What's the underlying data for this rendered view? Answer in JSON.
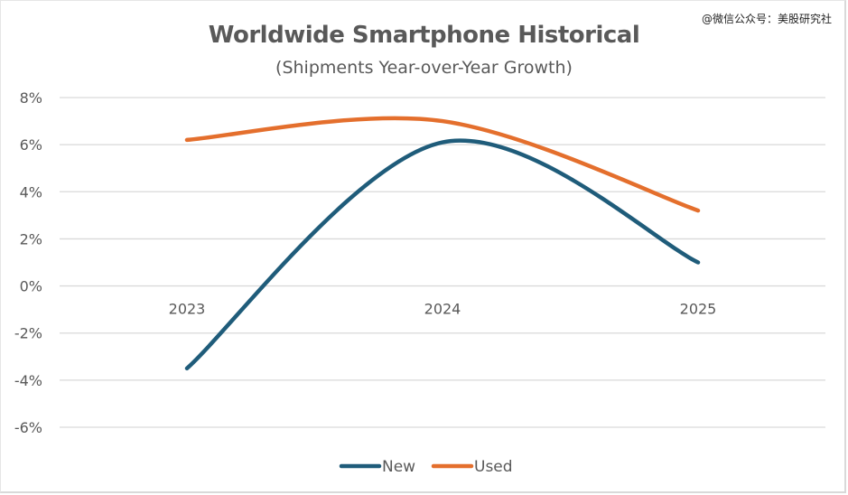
{
  "watermark": "@微信公众号：美股研究社",
  "chart_data": {
    "type": "line",
    "smooth": true,
    "title": "Worldwide Smartphone Historical",
    "subtitle": "(Shipments Year-over-Year Growth)",
    "xlabel": "",
    "ylabel": "",
    "categories": [
      "2023",
      "2024",
      "2025"
    ],
    "series": [
      {
        "name": "New",
        "color": "#1f5c7a",
        "values": [
          -3.5,
          6.1,
          1.0
        ]
      },
      {
        "name": "Used",
        "color": "#e46f2d",
        "values": [
          6.2,
          7.0,
          3.2
        ]
      }
    ],
    "ylim": [
      -6,
      8
    ],
    "yticks": [
      8,
      6,
      4,
      2,
      0,
      -2,
      -4,
      -6
    ],
    "ytick_labels": [
      "8%",
      "6%",
      "4%",
      "2%",
      "0%",
      "-2%",
      "-4%",
      "-6%"
    ],
    "grid": true,
    "gridline_color": "#d9d9d9",
    "text_color": "#595959",
    "legend_position": "bottom-center",
    "category_labels_position": "at y=0 axis"
  }
}
